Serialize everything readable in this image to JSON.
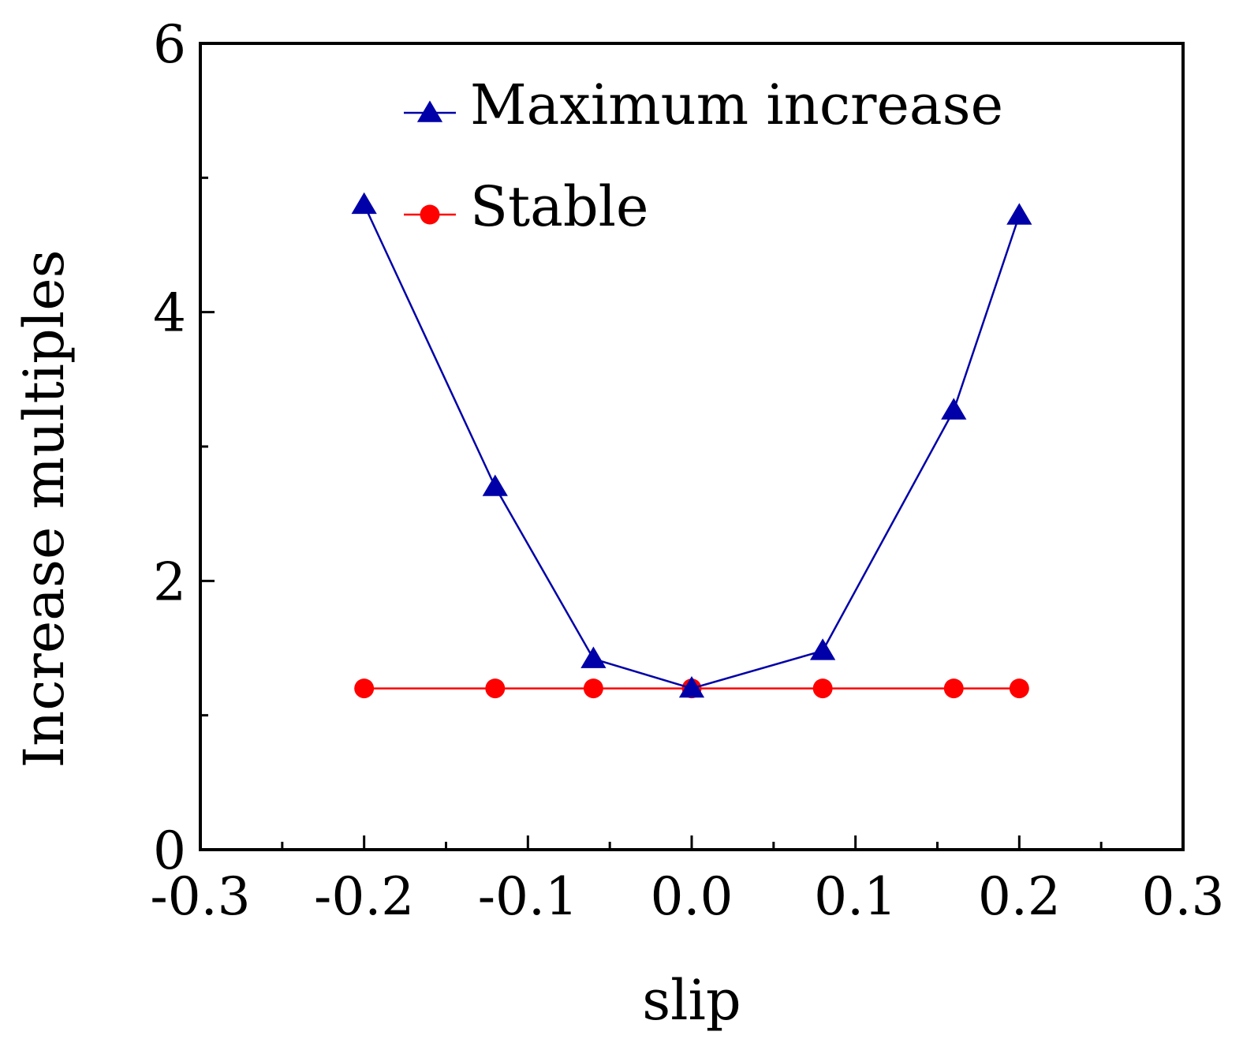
{
  "chart_data": {
    "type": "line",
    "xlabel": "slip",
    "ylabel": "Increase multiples",
    "xlim": [
      -0.3,
      0.3
    ],
    "ylim": [
      0,
      6
    ],
    "x_ticks": [
      -0.3,
      -0.2,
      -0.1,
      0.0,
      0.1,
      0.2,
      0.3
    ],
    "x_tick_labels": [
      "-0.3",
      "-0.2",
      "-0.1",
      "0.0",
      "0.1",
      "0.2",
      "0.3"
    ],
    "x_minor_ticks": [
      -0.25,
      -0.15,
      -0.05,
      0.05,
      0.15,
      0.25
    ],
    "y_ticks": [
      0,
      2,
      4,
      6
    ],
    "y_tick_labels": [
      "0",
      "2",
      "4",
      "6"
    ],
    "y_minor_ticks": [
      1,
      3,
      5
    ],
    "grid": false,
    "legend_position": "top-center",
    "series": [
      {
        "name": "Maximum increase",
        "marker": "triangle",
        "color": "#0000a8",
        "x": [
          -0.2,
          -0.12,
          -0.06,
          0.0,
          0.08,
          0.16,
          0.2
        ],
        "y": [
          4.8,
          2.7,
          1.42,
          1.2,
          1.48,
          3.27,
          4.72
        ]
      },
      {
        "name": "Stable",
        "marker": "circle",
        "color": "#ff0000",
        "x": [
          -0.2,
          -0.12,
          -0.06,
          0.0,
          0.08,
          0.16,
          0.2
        ],
        "y": [
          1.2,
          1.2,
          1.2,
          1.2,
          1.2,
          1.2,
          1.2
        ]
      }
    ]
  }
}
